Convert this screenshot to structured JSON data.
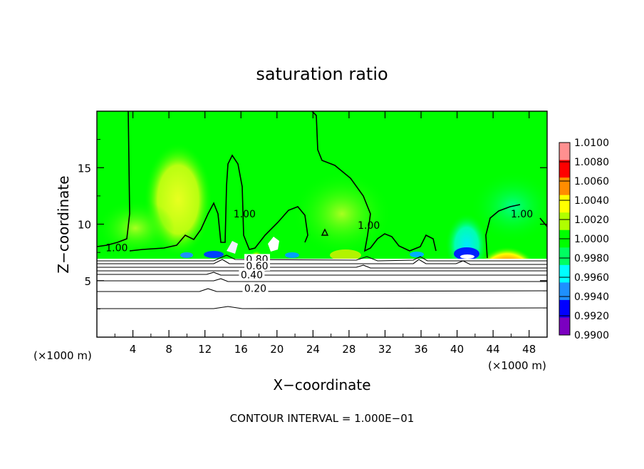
{
  "chart_data": {
    "type": "heatmap",
    "title": "saturation ratio",
    "xlabel": "X−coordinate",
    "ylabel": "Z−coordinate",
    "x_unit_left": "(×1000 m)",
    "x_unit_right": "(×1000 m)",
    "footer": "CONTOUR INTERVAL = 1.000E−01",
    "xlim": [
      0,
      50
    ],
    "ylim": [
      0,
      20
    ],
    "x_ticks": [
      4,
      8,
      12,
      16,
      20,
      24,
      28,
      32,
      36,
      40,
      44,
      48
    ],
    "y_ticks": [
      5,
      10,
      15
    ],
    "x_tick_labels": [
      "4",
      "8",
      "12",
      "16",
      "20",
      "24",
      "28",
      "32",
      "36",
      "40",
      "44",
      "48"
    ],
    "y_tick_labels": [
      "5",
      "10",
      "15"
    ],
    "colorbar": {
      "levels": [
        "0.9900",
        "0.9920",
        "0.9940",
        "0.9960",
        "0.9980",
        "1.0000",
        "1.0020",
        "1.0040",
        "1.0060",
        "1.0080",
        "1.0100"
      ],
      "colors": [
        "#7b00c0",
        "#0000ff",
        "#1e90ff",
        "#00ffff",
        "#00ff60",
        "#00ff00",
        "#b0ff00",
        "#ffff00",
        "#ff8c00",
        "#ff0000",
        "#ff9090"
      ]
    },
    "contour_labels": [
      {
        "text": "1.00",
        "x": 2.2,
        "z": 7.6
      },
      {
        "text": "1.00",
        "x": 16.4,
        "z": 10.6
      },
      {
        "text": "1.00",
        "x": 30.2,
        "z": 9.6
      },
      {
        "text": "1.00",
        "x": 47.2,
        "z": 10.6
      },
      {
        "text": "0.80",
        "x": 17.8,
        "z": 6.6
      },
      {
        "text": "0.60",
        "x": 17.8,
        "z": 6.0
      },
      {
        "text": "0.40",
        "x": 17.2,
        "z": 5.2
      },
      {
        "text": "0.20",
        "x": 17.6,
        "z": 4.0
      }
    ]
  }
}
